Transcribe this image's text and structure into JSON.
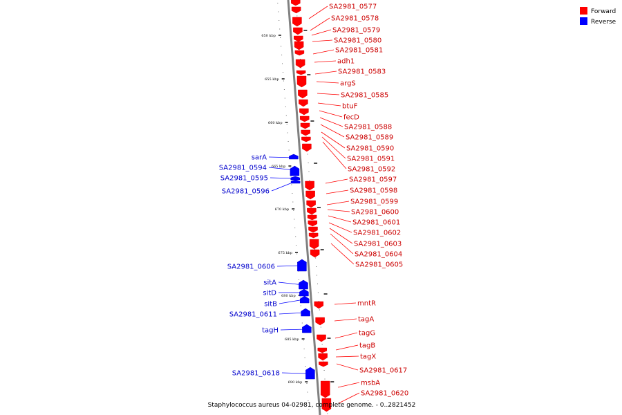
{
  "caption": "Staphylococcus aureus 04-02981, complete genome. - 0..2821452",
  "legend": {
    "forward": {
      "label": "Forward",
      "color": "#ff0000"
    },
    "reverse": {
      "label": "Reverse",
      "color": "#0000ff"
    }
  },
  "ticks": [
    "650 kbp",
    "655 kbp",
    "660 kbp",
    "665 kbp",
    "670 kbp",
    "675 kbp",
    "680 kbp",
    "685 kbp",
    "690 kbp"
  ],
  "forward_genes": [
    "SA2981_0577",
    "SA2981_0578",
    "SA2981_0579",
    "SA2981_0580",
    "SA2981_0581",
    "adh1",
    "SA2981_0583",
    "argS",
    "SA2981_0585",
    "btuF",
    "fecD",
    "SA2981_0588",
    "SA2981_0589",
    "SA2981_0590",
    "SA2981_0591",
    "SA2981_0592",
    "SA2981_0597",
    "SA2981_0598",
    "SA2981_0599",
    "SA2981_0600",
    "SA2981_0601",
    "SA2981_0602",
    "SA2981_0603",
    "SA2981_0604",
    "SA2981_0605",
    "mntR",
    "tagA",
    "tagG",
    "tagB",
    "tagX",
    "SA2981_0617",
    "msbA",
    "SA2981_0620"
  ],
  "reverse_genes": [
    "sarA",
    "SA2981_0594",
    "SA2981_0595",
    "SA2981_0596",
    "SA2981_0606",
    "sitA",
    "sitD",
    "sitB",
    "SA2981_0611",
    "tagH",
    "SA2981_0618"
  ]
}
